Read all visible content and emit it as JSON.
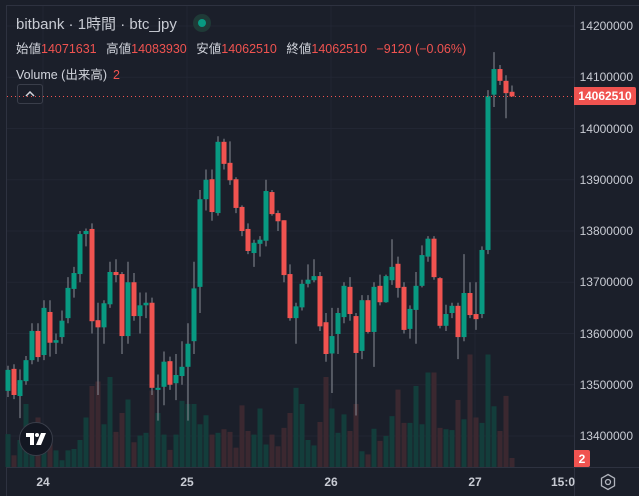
{
  "header": {
    "title": "bitbank · 1時間 · btc_jpy",
    "open_label": "始値",
    "open": "14071631",
    "high_label": "高値",
    "high": "14083930",
    "low_label": "安値",
    "low": "14062510",
    "close_label": "終値",
    "close": "14062510",
    "change": "−9120 (−0.06%)",
    "volume_label": "Volume (出来高)",
    "volume_value": "2",
    "collapse_icon": "^"
  },
  "price_axis": {
    "labels": [
      "14200000",
      "14100000",
      "14000000",
      "13900000",
      "13800000",
      "13700000",
      "13600000",
      "13500000",
      "13400000"
    ],
    "last_price": "14062510",
    "volume_badge": "2"
  },
  "time_axis": {
    "labels": [
      "24",
      "25",
      "26",
      "27",
      "15:0"
    ]
  },
  "logo_text": "TV",
  "colors": {
    "up": "#089981",
    "down": "#f05350",
    "up_vol": "#133d3b",
    "down_vol": "#3b2830",
    "background": "#1b1f2a"
  },
  "chart_data": {
    "type": "candlestick",
    "symbol": "btc_jpy",
    "interval": "1h",
    "ylim": [
      13360000,
      14240000
    ],
    "candles": [
      [
        13488000,
        13537000,
        13476000,
        13529000
      ],
      [
        13531000,
        13540000,
        13472000,
        13480000
      ],
      [
        13478000,
        13530000,
        13435000,
        13509000
      ],
      [
        13507000,
        13556000,
        13500000,
        13548000
      ],
      [
        13548000,
        13620000,
        13540000,
        13605000
      ],
      [
        13605000,
        13620000,
        13545000,
        13554000
      ],
      [
        13558000,
        13665000,
        13548000,
        13650000
      ],
      [
        13642000,
        13665000,
        13555000,
        13582000
      ],
      [
        13582000,
        13600000,
        13560000,
        13587000
      ],
      [
        13593000,
        13645000,
        13580000,
        13625000
      ],
      [
        13630000,
        13710000,
        13620000,
        13689000
      ],
      [
        13687000,
        13730000,
        13670000,
        13718000
      ],
      [
        13716000,
        13800000,
        13700000,
        13794000
      ],
      [
        13794000,
        13805000,
        13770000,
        13800000
      ],
      [
        13804000,
        13815000,
        13600000,
        13624000
      ],
      [
        13626000,
        13660000,
        13480000,
        13612000
      ],
      [
        13612000,
        13665000,
        13580000,
        13659000
      ],
      [
        13657000,
        13740000,
        13650000,
        13720000
      ],
      [
        13720000,
        13745000,
        13700000,
        13714000
      ],
      [
        13716000,
        13720000,
        13560000,
        13595000
      ],
      [
        13595000,
        13740000,
        13580000,
        13700000
      ],
      [
        13700000,
        13718000,
        13625000,
        13634000
      ],
      [
        13634000,
        13680000,
        13600000,
        13655000
      ],
      [
        13655000,
        13680000,
        13630000,
        13660000
      ],
      [
        13660000,
        13670000,
        13480000,
        13494000
      ],
      [
        13490000,
        13520000,
        13430000,
        13494000
      ],
      [
        13496000,
        13565000,
        13460000,
        13545000
      ],
      [
        13546000,
        13555000,
        13490000,
        13500000
      ],
      [
        13503000,
        13560000,
        13470000,
        13519000
      ],
      [
        13517000,
        13585000,
        13500000,
        13535000
      ],
      [
        13535000,
        13620000,
        13430000,
        13580000
      ],
      [
        13585000,
        13740000,
        13560000,
        13688000
      ],
      [
        13691000,
        13880000,
        13640000,
        13862000
      ],
      [
        13862000,
        13920000,
        13840000,
        13900000
      ],
      [
        13901000,
        13920000,
        13820000,
        13837000
      ],
      [
        13835000,
        13985000,
        13830000,
        13974000
      ],
      [
        13974000,
        13980000,
        13920000,
        13931000
      ],
      [
        13933000,
        13975000,
        13890000,
        13899000
      ],
      [
        13901000,
        13905000,
        13835000,
        13845000
      ],
      [
        13847000,
        13850000,
        13790000,
        13800000
      ],
      [
        13804000,
        13815000,
        13755000,
        13761000
      ],
      [
        13757000,
        13783000,
        13730000,
        13777000
      ],
      [
        13775000,
        13790000,
        13750000,
        13783000
      ],
      [
        13781000,
        13900000,
        13770000,
        13878000
      ],
      [
        13876000,
        13880000,
        13830000,
        13833000
      ],
      [
        13835000,
        13840000,
        13800000,
        13819000
      ],
      [
        13821000,
        13821000,
        13700000,
        13714000
      ],
      [
        13716000,
        13735000,
        13625000,
        13630000
      ],
      [
        13630000,
        13660000,
        13580000,
        13653000
      ],
      [
        13651000,
        13705000,
        13645000,
        13697000
      ],
      [
        13697000,
        13735000,
        13690000,
        13705000
      ],
      [
        13704000,
        13745000,
        13700000,
        13712000
      ],
      [
        13712000,
        13720000,
        13605000,
        13614000
      ],
      [
        13622000,
        13640000,
        13545000,
        13560000
      ],
      [
        13561000,
        13650000,
        13484000,
        13595000
      ],
      [
        13599000,
        13650000,
        13560000,
        13640000
      ],
      [
        13632000,
        13700000,
        13620000,
        13693000
      ],
      [
        13691000,
        13710000,
        13625000,
        13638000
      ],
      [
        13634000,
        13640000,
        13440000,
        13562000
      ],
      [
        13566000,
        13675000,
        13550000,
        13665000
      ],
      [
        13665000,
        13675000,
        13600000,
        13603000
      ],
      [
        13603000,
        13700000,
        13535000,
        13691000
      ],
      [
        13693000,
        13715000,
        13655000,
        13661000
      ],
      [
        13661000,
        13715000,
        13660000,
        13712000
      ],
      [
        13704000,
        13784000,
        13695000,
        13730000
      ],
      [
        13736000,
        13750000,
        13670000,
        13689000
      ],
      [
        13691000,
        13700000,
        13600000,
        13607000
      ],
      [
        13609000,
        13655000,
        13590000,
        13648000
      ],
      [
        13646000,
        13720000,
        13580000,
        13693000
      ],
      [
        13693000,
        13772000,
        13690000,
        13753000
      ],
      [
        13750000,
        13790000,
        13740000,
        13785000
      ],
      [
        13785000,
        13790000,
        13705000,
        13710000
      ],
      [
        13708000,
        13710000,
        13610000,
        13615000
      ],
      [
        13615000,
        13656000,
        13605000,
        13638000
      ],
      [
        13640000,
        13660000,
        13630000,
        13654000
      ],
      [
        13654000,
        13660000,
        13550000,
        13593000
      ],
      [
        13593000,
        13755000,
        13585000,
        13679000
      ],
      [
        13679000,
        13700000,
        13630000,
        13636000
      ],
      [
        13638000,
        13700000,
        13607000,
        13628000
      ],
      [
        13638000,
        13770000,
        13630000,
        13763000
      ],
      [
        13763000,
        14075000,
        13755000,
        14063000
      ],
      [
        14066000,
        14149000,
        14042000,
        14116000
      ],
      [
        14116000,
        14124000,
        14085000,
        14093000
      ],
      [
        14093000,
        14104000,
        14020000,
        14069000
      ],
      [
        14071631,
        14083930,
        14062510,
        14062510
      ]
    ],
    "volume": [
      7.3,
      2.6,
      6,
      14,
      5,
      11,
      8,
      6,
      3.7,
      1.5,
      3.7,
      4,
      6,
      11,
      18,
      19,
      9.5,
      20,
      7.8,
      12,
      15,
      5.5,
      7,
      7.6,
      17,
      12,
      7.2,
      3.8,
      7.2,
      14.7,
      14,
      14,
      9.5,
      11.5,
      7.2,
      7.6,
      8.4,
      7.8,
      4.3,
      13.7,
      8,
      7.2,
      13,
      5,
      7.2,
      4.6,
      8.7,
      12,
      17.6,
      14,
      6,
      4.8,
      10,
      20,
      13,
      7.6,
      11.7,
      8,
      14,
      3.5,
      2.8,
      8.5,
      5.8,
      6.9,
      11.3,
      17.2,
      9.8,
      9.8,
      18,
      9.5,
      21,
      21,
      8.7,
      8.4,
      8.2,
      14.9,
      10.6,
      25,
      11,
      9.8,
      25,
      13.5,
      8,
      15.8,
      2
    ]
  }
}
